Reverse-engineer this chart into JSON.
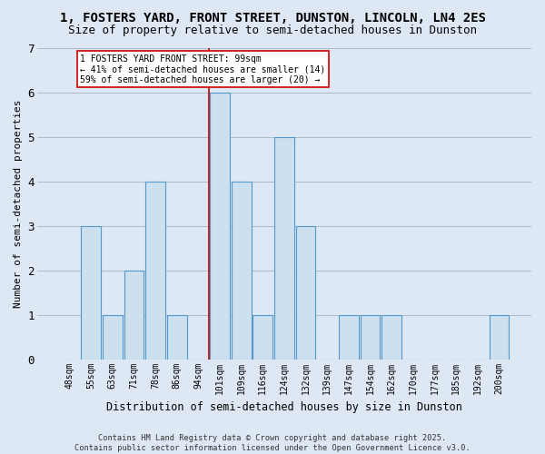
{
  "title": "1, FOSTERS YARD, FRONT STREET, DUNSTON, LINCOLN, LN4 2ES",
  "subtitle": "Size of property relative to semi-detached houses in Dunston",
  "xlabel": "Distribution of semi-detached houses by size in Dunston",
  "ylabel": "Number of semi-detached properties",
  "categories": [
    "48sqm",
    "55sqm",
    "63sqm",
    "71sqm",
    "78sqm",
    "86sqm",
    "94sqm",
    "101sqm",
    "109sqm",
    "116sqm",
    "124sqm",
    "132sqm",
    "139sqm",
    "147sqm",
    "154sqm",
    "162sqm",
    "170sqm",
    "177sqm",
    "185sqm",
    "192sqm",
    "200sqm"
  ],
  "values": [
    0,
    3,
    1,
    2,
    4,
    1,
    0,
    6,
    4,
    1,
    5,
    3,
    0,
    1,
    1,
    1,
    0,
    0,
    0,
    0,
    1
  ],
  "bar_color": "#cce0f0",
  "bar_edge_color": "#5599cc",
  "red_line_color": "#bb0000",
  "annotation_text": "1 FOSTERS YARD FRONT STREET: 99sqm\n← 41% of semi-detached houses are smaller (14)\n59% of semi-detached houses are larger (20) →",
  "annotation_box_color": "white",
  "annotation_box_edge": "#cc0000",
  "ylim": [
    0,
    7
  ],
  "yticks": [
    0,
    1,
    2,
    3,
    4,
    5,
    6,
    7
  ],
  "grid_color": "#aabbcc",
  "plot_bg_color": "#dde8f4",
  "fig_bg_color": "#dde8f4",
  "footer": "Contains HM Land Registry data © Crown copyright and database right 2025.\nContains public sector information licensed under the Open Government Licence v3.0.",
  "title_fontsize": 10,
  "subtitle_fontsize": 9,
  "red_line_x": 6.5
}
